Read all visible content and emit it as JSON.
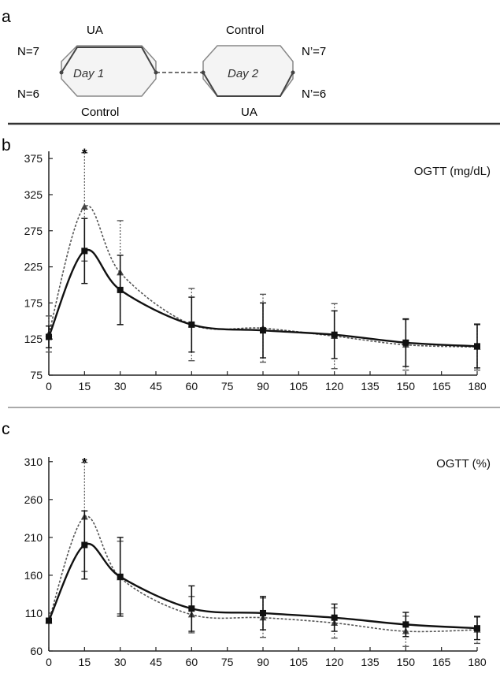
{
  "panels": {
    "a": "a",
    "b": "b",
    "c": "c"
  },
  "design": {
    "top_left": "UA",
    "top_right": "Control",
    "bottom_left": "Control",
    "bottom_right": "UA",
    "n_top_left": "N=7",
    "n_bottom_left": "N=6",
    "n_top_right": "N’=7",
    "n_bottom_right": "N’=6",
    "day1": "Day 1",
    "day2": "Day 2"
  },
  "chart_data": [
    {
      "type": "line",
      "title": "OGTT (mg/dL)",
      "x": [
        0,
        15,
        30,
        60,
        90,
        120,
        150,
        180
      ],
      "x_ticks": [
        0,
        15,
        30,
        45,
        60,
        75,
        90,
        105,
        120,
        135,
        150,
        165,
        180
      ],
      "y_ticks": [
        75,
        125,
        175,
        225,
        275,
        325,
        375
      ],
      "xlim": [
        0,
        180
      ],
      "ylim": [
        75,
        385
      ],
      "series": [
        {
          "style": "solid",
          "values": [
            128,
            247,
            193,
            145,
            137,
            131,
            120,
            115
          ],
          "err": [
            15,
            45,
            48,
            38,
            38,
            33,
            33,
            30
          ]
        },
        {
          "style": "dotted",
          "values": [
            132,
            308,
            217,
            145,
            140,
            129,
            117,
            114
          ],
          "err": [
            25,
            75,
            72,
            50,
            47,
            45,
            35,
            32
          ]
        }
      ],
      "significance": [
        {
          "x": 15,
          "label": "*"
        }
      ]
    },
    {
      "type": "line",
      "title": "OGTT (%)",
      "x": [
        0,
        15,
        30,
        60,
        90,
        120,
        150,
        180
      ],
      "x_ticks": [
        0,
        15,
        30,
        45,
        60,
        75,
        90,
        105,
        120,
        135,
        150,
        165,
        180
      ],
      "y_ticks": [
        60,
        110,
        160,
        210,
        260,
        310
      ],
      "xlim": [
        0,
        180
      ],
      "ylim": [
        60,
        316
      ],
      "series": [
        {
          "style": "solid",
          "values": [
            100,
            200,
            158,
            116,
            110,
            104,
            95,
            90
          ],
          "err": [
            2,
            45,
            52,
            30,
            22,
            18,
            16,
            15
          ]
        },
        {
          "style": "dotted",
          "values": [
            100,
            237,
            157,
            108,
            104,
            97,
            86,
            88
          ],
          "err": [
            2,
            72,
            48,
            24,
            26,
            20,
            20,
            18
          ]
        }
      ],
      "significance": [
        {
          "x": 15,
          "label": "*"
        }
      ]
    }
  ]
}
